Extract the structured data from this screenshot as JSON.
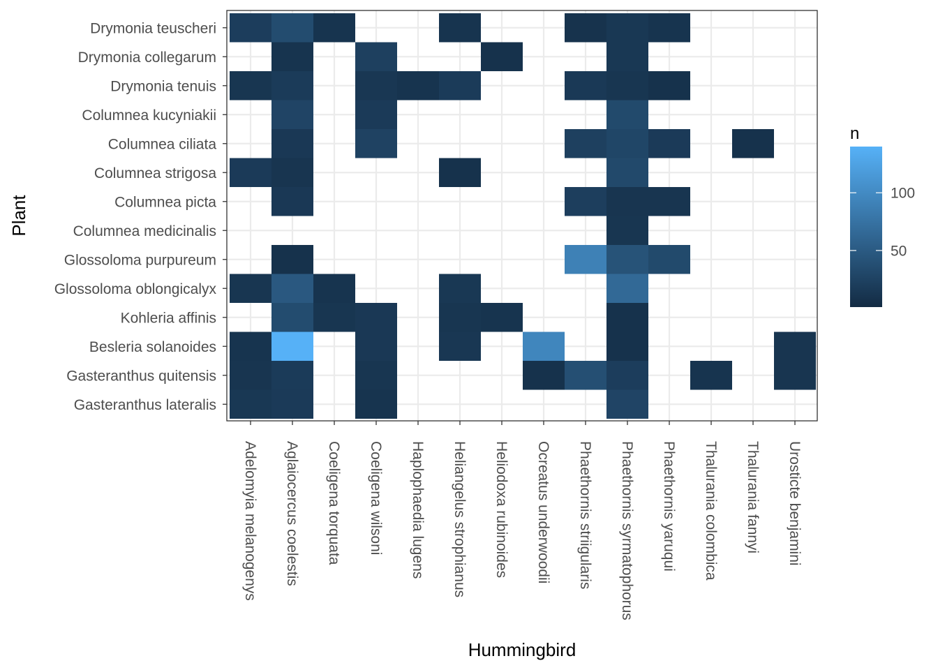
{
  "chart_data": {
    "type": "heatmap",
    "xlabel": "Hummingbird",
    "ylabel": "Plant",
    "x_categories": [
      "Adelomyia melanogenys",
      "Aglaiocercus coelestis",
      "Coeligena torquata",
      "Coeligena wilsoni",
      "Haplophaedia lugens",
      "Heliangelus strophianus",
      "Heliodoxa rubinoides",
      "Ocreatus underwoodii",
      "Phaethornis striigularis",
      "Phaethornis syrmatophorus",
      "Phaethornis yaruqui",
      "Thalurania colombica",
      "Thalurania fannyi",
      "Urosticte benjamini"
    ],
    "y_categories": [
      "Drymonia teuscheri",
      "Drymonia collegarum",
      "Drymonia tenuis",
      "Columnea kucyniakii",
      "Columnea ciliata",
      "Columnea strigosa",
      "Columnea picta",
      "Columnea medicinalis",
      "Glossoloma purpureum",
      "Glossoloma oblongicalyx",
      "Kohleria affinis",
      "Besleria solanoides",
      "Gasteranthus quitensis",
      "Gasteranthus lateralis"
    ],
    "cells": [
      {
        "plant": "Drymonia teuscheri",
        "hummingbird": "Adelomyia melanogenys",
        "n": 20
      },
      {
        "plant": "Drymonia teuscheri",
        "hummingbird": "Aglaiocercus coelestis",
        "n": 35
      },
      {
        "plant": "Drymonia teuscheri",
        "hummingbird": "Coeligena torquata",
        "n": 10
      },
      {
        "plant": "Drymonia teuscheri",
        "hummingbird": "Heliangelus strophianus",
        "n": 10
      },
      {
        "plant": "Drymonia teuscheri",
        "hummingbird": "Phaethornis striigularis",
        "n": 9
      },
      {
        "plant": "Drymonia teuscheri",
        "hummingbird": "Phaethornis syrmatophorus",
        "n": 14
      },
      {
        "plant": "Drymonia teuscheri",
        "hummingbird": "Phaethornis yaruqui",
        "n": 10
      },
      {
        "plant": "Drymonia collegarum",
        "hummingbird": "Aglaiocercus coelestis",
        "n": 10
      },
      {
        "plant": "Drymonia collegarum",
        "hummingbird": "Coeligena wilsoni",
        "n": 23
      },
      {
        "plant": "Drymonia collegarum",
        "hummingbird": "Heliodoxa rubinoides",
        "n": 8
      },
      {
        "plant": "Drymonia collegarum",
        "hummingbird": "Phaethornis syrmatophorus",
        "n": 14
      },
      {
        "plant": "Drymonia tenuis",
        "hummingbird": "Adelomyia melanogenys",
        "n": 12
      },
      {
        "plant": "Drymonia tenuis",
        "hummingbird": "Aglaiocercus coelestis",
        "n": 18
      },
      {
        "plant": "Drymonia tenuis",
        "hummingbird": "Coeligena wilsoni",
        "n": 13
      },
      {
        "plant": "Drymonia tenuis",
        "hummingbird": "Haplophaedia lugens",
        "n": 10
      },
      {
        "plant": "Drymonia tenuis",
        "hummingbird": "Heliangelus strophianus",
        "n": 18
      },
      {
        "plant": "Drymonia tenuis",
        "hummingbird": "Phaethornis striigularis",
        "n": 16
      },
      {
        "plant": "Drymonia tenuis",
        "hummingbird": "Phaethornis syrmatophorus",
        "n": 12
      },
      {
        "plant": "Drymonia tenuis",
        "hummingbird": "Phaethornis yaruqui",
        "n": 8
      },
      {
        "plant": "Columnea kucyniakii",
        "hummingbird": "Aglaiocercus coelestis",
        "n": 27
      },
      {
        "plant": "Columnea kucyniakii",
        "hummingbird": "Coeligena wilsoni",
        "n": 17
      },
      {
        "plant": "Columnea kucyniakii",
        "hummingbird": "Phaethornis syrmatophorus",
        "n": 33
      },
      {
        "plant": "Columnea ciliata",
        "hummingbird": "Aglaiocercus coelestis",
        "n": 15
      },
      {
        "plant": "Columnea ciliata",
        "hummingbird": "Coeligena wilsoni",
        "n": 25
      },
      {
        "plant": "Columnea ciliata",
        "hummingbird": "Phaethornis striigularis",
        "n": 23
      },
      {
        "plant": "Columnea ciliata",
        "hummingbird": "Phaethornis syrmatophorus",
        "n": 29
      },
      {
        "plant": "Columnea ciliata",
        "hummingbird": "Phaethornis yaruqui",
        "n": 17
      },
      {
        "plant": "Columnea ciliata",
        "hummingbird": "Thalurania fannyi",
        "n": 8
      },
      {
        "plant": "Columnea strigosa",
        "hummingbird": "Adelomyia melanogenys",
        "n": 17
      },
      {
        "plant": "Columnea strigosa",
        "hummingbird": "Aglaiocercus coelestis",
        "n": 11
      },
      {
        "plant": "Columnea strigosa",
        "hummingbird": "Heliangelus strophianus",
        "n": 8
      },
      {
        "plant": "Columnea strigosa",
        "hummingbird": "Phaethornis syrmatophorus",
        "n": 32
      },
      {
        "plant": "Columnea picta",
        "hummingbird": "Aglaiocercus coelestis",
        "n": 15
      },
      {
        "plant": "Columnea picta",
        "hummingbird": "Phaethornis striigularis",
        "n": 21
      },
      {
        "plant": "Columnea picta",
        "hummingbird": "Phaethornis syrmatophorus",
        "n": 11
      },
      {
        "plant": "Columnea picta",
        "hummingbird": "Phaethornis yaruqui",
        "n": 11
      },
      {
        "plant": "Columnea medicinalis",
        "hummingbird": "Phaethornis syrmatophorus",
        "n": 12
      },
      {
        "plant": "Glossoloma purpureum",
        "hummingbird": "Aglaiocercus coelestis",
        "n": 8
      },
      {
        "plant": "Glossoloma purpureum",
        "hummingbird": "Phaethornis striigularis",
        "n": 90
      },
      {
        "plant": "Glossoloma purpureum",
        "hummingbird": "Phaethornis syrmatophorus",
        "n": 42
      },
      {
        "plant": "Glossoloma purpureum",
        "hummingbird": "Phaethornis yaruqui",
        "n": 33
      },
      {
        "plant": "Glossoloma oblongicalyx",
        "hummingbird": "Adelomyia melanogenys",
        "n": 12
      },
      {
        "plant": "Glossoloma oblongicalyx",
        "hummingbird": "Aglaiocercus coelestis",
        "n": 48
      },
      {
        "plant": "Glossoloma oblongicalyx",
        "hummingbird": "Coeligena torquata",
        "n": 10
      },
      {
        "plant": "Glossoloma oblongicalyx",
        "hummingbird": "Heliangelus strophianus",
        "n": 14
      },
      {
        "plant": "Glossoloma oblongicalyx",
        "hummingbird": "Phaethornis syrmatophorus",
        "n": 65
      },
      {
        "plant": "Kohleria affinis",
        "hummingbird": "Aglaiocercus coelestis",
        "n": 35
      },
      {
        "plant": "Kohleria affinis",
        "hummingbird": "Coeligena torquata",
        "n": 12
      },
      {
        "plant": "Kohleria affinis",
        "hummingbird": "Coeligena wilsoni",
        "n": 15
      },
      {
        "plant": "Kohleria affinis",
        "hummingbird": "Heliangelus strophianus",
        "n": 12
      },
      {
        "plant": "Kohleria affinis",
        "hummingbird": "Heliodoxa rubinoides",
        "n": 10
      },
      {
        "plant": "Kohleria affinis",
        "hummingbird": "Phaethornis syrmatophorus",
        "n": 8
      },
      {
        "plant": "Besleria solanoides",
        "hummingbird": "Adelomyia melanogenys",
        "n": 10
      },
      {
        "plant": "Besleria solanoides",
        "hummingbird": "Aglaiocercus coelestis",
        "n": 140
      },
      {
        "plant": "Besleria solanoides",
        "hummingbird": "Coeligena wilsoni",
        "n": 15
      },
      {
        "plant": "Besleria solanoides",
        "hummingbird": "Heliangelus strophianus",
        "n": 13
      },
      {
        "plant": "Besleria solanoides",
        "hummingbird": "Ocreatus underwoodii",
        "n": 95
      },
      {
        "plant": "Besleria solanoides",
        "hummingbird": "Phaethornis syrmatophorus",
        "n": 8
      },
      {
        "plant": "Besleria solanoides",
        "hummingbird": "Urosticte benjamini",
        "n": 11
      },
      {
        "plant": "Gasteranthus quitensis",
        "hummingbird": "Adelomyia melanogenys",
        "n": 11
      },
      {
        "plant": "Gasteranthus quitensis",
        "hummingbird": "Aglaiocercus coelestis",
        "n": 18
      },
      {
        "plant": "Gasteranthus quitensis",
        "hummingbird": "Coeligena wilsoni",
        "n": 12
      },
      {
        "plant": "Gasteranthus quitensis",
        "hummingbird": "Ocreatus underwoodii",
        "n": 8
      },
      {
        "plant": "Gasteranthus quitensis",
        "hummingbird": "Phaethornis striigularis",
        "n": 38
      },
      {
        "plant": "Gasteranthus quitensis",
        "hummingbird": "Phaethornis syrmatophorus",
        "n": 20
      },
      {
        "plant": "Gasteranthus quitensis",
        "hummingbird": "Thalurania colombica",
        "n": 10
      },
      {
        "plant": "Gasteranthus quitensis",
        "hummingbird": "Urosticte benjamini",
        "n": 11
      },
      {
        "plant": "Gasteranthus lateralis",
        "hummingbird": "Adelomyia melanogenys",
        "n": 14
      },
      {
        "plant": "Gasteranthus lateralis",
        "hummingbird": "Aglaiocercus coelestis",
        "n": 17
      },
      {
        "plant": "Gasteranthus lateralis",
        "hummingbird": "Coeligena wilsoni",
        "n": 10
      },
      {
        "plant": "Gasteranthus lateralis",
        "hummingbird": "Phaethornis syrmatophorus",
        "n": 27
      }
    ],
    "legend": {
      "title": "n",
      "min": 1,
      "max": 140,
      "breaks": [
        50,
        100
      ],
      "low_color": "#132B43",
      "high_color": "#56B1F7",
      "position": "right"
    },
    "grid": true,
    "panel_background": "#ffffff",
    "grid_color": "#ebebeb",
    "border_color": "#333333"
  }
}
